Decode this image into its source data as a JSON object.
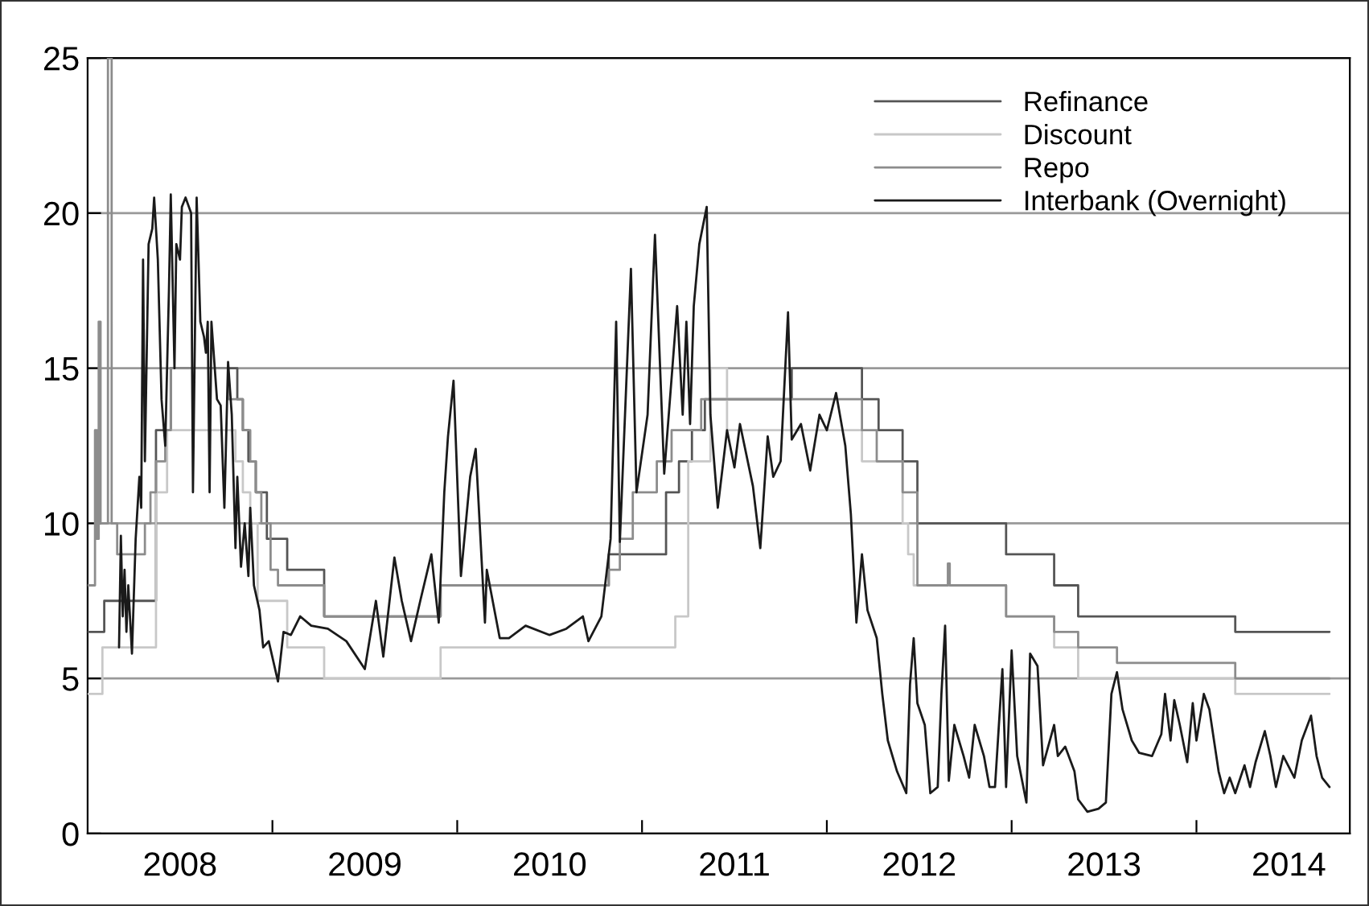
{
  "chart_data": {
    "type": "line",
    "xlim": [
      2008.0,
      2014.83
    ],
    "ylim": [
      0,
      25
    ],
    "yticks": [
      0,
      5,
      10,
      15,
      20,
      25
    ],
    "xticks": [
      {
        "value": 2008.5,
        "label": "2008"
      },
      {
        "value": 2009,
        "label": null
      },
      {
        "value": 2009.5,
        "label": "2009"
      },
      {
        "value": 2010,
        "label": null
      },
      {
        "value": 2010.5,
        "label": "2010"
      },
      {
        "value": 2011,
        "label": null
      },
      {
        "value": 2011.5,
        "label": "2011"
      },
      {
        "value": 2012,
        "label": null
      },
      {
        "value": 2012.5,
        "label": "2012"
      },
      {
        "value": 2013,
        "label": null
      },
      {
        "value": 2013.5,
        "label": "2013"
      },
      {
        "value": 2014,
        "label": null
      },
      {
        "value": 2014.5,
        "label": "2014"
      }
    ],
    "grid": "y",
    "legend": "top right",
    "series": [
      {
        "name": "Refinance",
        "type": "step",
        "color": "#555555",
        "x": [
          2008.0,
          2008.09,
          2008.37,
          2008.45,
          2008.81,
          2008.84,
          2008.87,
          2008.91,
          2008.97,
          2009.08,
          2009.28,
          2009.91,
          2010.82,
          2011.13,
          2011.2,
          2011.27,
          2011.34,
          2011.81,
          2012.19,
          2012.28,
          2012.41,
          2012.49,
          2012.97,
          2013.23,
          2013.36,
          2014.21,
          2014.72
        ],
        "values": [
          6.5,
          7.5,
          13,
          15,
          14,
          13,
          12,
          11,
          9.5,
          8.5,
          7,
          8,
          9,
          11,
          12,
          13,
          14,
          15,
          14,
          13,
          12,
          10,
          9,
          8,
          7,
          6.5,
          6.5
        ]
      },
      {
        "name": "Discount",
        "type": "step",
        "color": "#c8c8c8",
        "x": [
          2008.0,
          2008.08,
          2008.37,
          2008.43,
          2008.8,
          2008.84,
          2008.88,
          2008.92,
          2009.08,
          2009.28,
          2009.91,
          2011.18,
          2011.25,
          2011.37,
          2011.46,
          2012.19,
          2012.41,
          2012.44,
          2012.47,
          2012.97,
          2013.23,
          2013.36,
          2014.21,
          2014.72
        ],
        "values": [
          4.5,
          6,
          11,
          13,
          12,
          11,
          10,
          7.5,
          6,
          5,
          6,
          7,
          12,
          15,
          13,
          12,
          10,
          9,
          8,
          7,
          6,
          5,
          4.5,
          4.5
        ]
      },
      {
        "name": "Repo",
        "type": "step",
        "color": "#8c8c8c",
        "x": [
          2008.0,
          2008.04,
          2008.05,
          2008.06,
          2008.07,
          2008.11,
          2008.13,
          2008.16,
          2008.31,
          2008.34,
          2008.37,
          2008.42,
          2008.45,
          2008.76,
          2008.84,
          2008.88,
          2008.91,
          2008.94,
          2008.99,
          2009.03,
          2009.28,
          2009.91,
          2010.82,
          2010.88,
          2010.95,
          2011.08,
          2011.16,
          2011.32,
          2012.19,
          2012.27,
          2012.41,
          2012.49,
          2012.655,
          2012.665,
          2012.97,
          2013.23,
          2013.36,
          2013.57,
          2014.21,
          2014.72
        ],
        "values": [
          8,
          13,
          9.5,
          16.5,
          10,
          25,
          10,
          9,
          10,
          11,
          12,
          13,
          15,
          14,
          13,
          12,
          11,
          10,
          8.5,
          8,
          7,
          8,
          8.5,
          9.5,
          11,
          12,
          13,
          14,
          13,
          12,
          11,
          8,
          8.7,
          8,
          7,
          6.5,
          6,
          5.5,
          5,
          5
        ]
      },
      {
        "name": "Interbank (Overnight)",
        "type": "line",
        "color": "#1a1a1a",
        "x": [
          2008.17,
          2008.18,
          2008.19,
          2008.2,
          2008.21,
          2008.22,
          2008.24,
          2008.26,
          2008.28,
          2008.29,
          2008.3,
          2008.31,
          2008.33,
          2008.35,
          2008.36,
          2008.38,
          2008.4,
          2008.42,
          2008.44,
          2008.45,
          2008.47,
          2008.48,
          2008.5,
          2008.51,
          2008.53,
          2008.56,
          2008.57,
          2008.59,
          2008.61,
          2008.63,
          2008.64,
          2008.65,
          2008.66,
          2008.67,
          2008.7,
          2008.72,
          2008.74,
          2008.76,
          2008.78,
          2008.8,
          2008.81,
          2008.83,
          2008.85,
          2008.87,
          2008.88,
          2008.9,
          2008.93,
          2008.95,
          2008.98,
          2009.03,
          2009.06,
          2009.1,
          2009.15,
          2009.21,
          2009.3,
          2009.4,
          2009.5,
          2009.56,
          2009.6,
          2009.66,
          2009.7,
          2009.75,
          2009.8,
          2009.86,
          2009.9,
          2009.93,
          2009.95,
          2009.98,
          2010.02,
          2010.07,
          2010.1,
          2010.15,
          2010.16,
          2010.23,
          2010.28,
          2010.37,
          2010.5,
          2010.59,
          2010.68,
          2010.71,
          2010.78,
          2010.83,
          2010.86,
          2010.88,
          2010.94,
          2010.97,
          2011.03,
          2011.07,
          2011.12,
          2011.19,
          2011.22,
          2011.24,
          2011.26,
          2011.28,
          2011.31,
          2011.35,
          2011.37,
          2011.41,
          2011.46,
          2011.5,
          2011.53,
          2011.6,
          2011.64,
          2011.68,
          2011.71,
          2011.75,
          2011.79,
          2011.81,
          2011.86,
          2011.91,
          2011.96,
          2012.0,
          2012.05,
          2012.1,
          2012.13,
          2012.16,
          2012.19,
          2012.22,
          2012.27,
          2012.3,
          2012.33,
          2012.38,
          2012.43,
          2012.45,
          2012.47,
          2012.49,
          2012.53,
          2012.56,
          2012.6,
          2012.62,
          2012.64,
          2012.66,
          2012.69,
          2012.74,
          2012.77,
          2012.8,
          2012.85,
          2012.88,
          2012.91,
          2012.95,
          2012.97,
          2013.0,
          2013.03,
          2013.08,
          2013.1,
          2013.14,
          2013.17,
          2013.23,
          2013.25,
          2013.29,
          2013.34,
          2013.36,
          2013.41,
          2013.47,
          2013.51,
          2013.54,
          2013.57,
          2013.6,
          2013.65,
          2013.69,
          2013.76,
          2013.81,
          2013.83,
          2013.86,
          2013.88,
          2013.91,
          2013.95,
          2013.98,
          2014.0,
          2014.04,
          2014.07,
          2014.12,
          2014.15,
          2014.18,
          2014.21,
          2014.26,
          2014.29,
          2014.32,
          2014.37,
          2014.4,
          2014.43,
          2014.47,
          2014.53,
          2014.57,
          2014.62,
          2014.65,
          2014.68,
          2014.72
        ],
        "values": [
          6.0,
          9.6,
          7,
          8.5,
          6.5,
          8,
          5.8,
          9.5,
          11.5,
          10.5,
          18.5,
          12,
          19,
          19.5,
          20.5,
          18.5,
          14,
          12.5,
          17.5,
          20.6,
          15,
          19,
          18.5,
          20.2,
          20.5,
          20,
          11,
          20.5,
          16.5,
          16,
          15.5,
          16.5,
          11,
          16.5,
          14,
          13.8,
          10.5,
          15.2,
          13.5,
          9.2,
          11.5,
          8.6,
          10,
          8.3,
          10.5,
          8,
          7.2,
          6,
          6.2,
          4.9,
          6.5,
          6.4,
          7,
          6.7,
          6.6,
          6.2,
          5.3,
          7.5,
          5.7,
          8.9,
          7.5,
          6.2,
          7.5,
          9.0,
          6.8,
          11,
          12.8,
          14.6,
          8.3,
          11.5,
          12.4,
          6.8,
          8.5,
          6.3,
          6.3,
          6.7,
          6.4,
          6.6,
          7.0,
          6.2,
          7,
          9.5,
          16.5,
          9.4,
          18.2,
          11,
          13.5,
          19.3,
          11.6,
          17.0,
          13.5,
          16.5,
          13.2,
          17,
          19,
          20.2,
          13.5,
          10.5,
          13,
          11.8,
          13.2,
          11.2,
          9.2,
          12.8,
          11.5,
          12,
          16.8,
          12.7,
          13.2,
          11.7,
          13.5,
          13,
          14.2,
          12.5,
          10.3,
          6.8,
          9.0,
          7.2,
          6.3,
          4.5,
          3.0,
          2.0,
          1.3,
          4.8,
          6.3,
          4.2,
          3.5,
          1.3,
          1.5,
          4.5,
          6.7,
          1.7,
          3.5,
          2.5,
          1.8,
          3.5,
          2.5,
          1.5,
          1.5,
          5.3,
          1.5,
          5.9,
          2.5,
          1.0,
          5.8,
          5.4,
          2.2,
          3.5,
          2.5,
          2.8,
          2.0,
          1.1,
          0.7,
          0.8,
          1.0,
          4.5,
          5.2,
          4.0,
          3.0,
          2.6,
          2.5,
          3.2,
          4.5,
          3.0,
          4.3,
          3.5,
          2.3,
          4.2,
          3.0,
          4.5,
          4.0,
          2.0,
          1.3,
          1.8,
          1.3,
          2.2,
          1.5,
          2.3,
          3.3,
          2.5,
          1.5,
          2.5,
          1.8,
          3.0,
          3.8,
          2.5,
          1.8,
          1.5
        ]
      }
    ]
  }
}
